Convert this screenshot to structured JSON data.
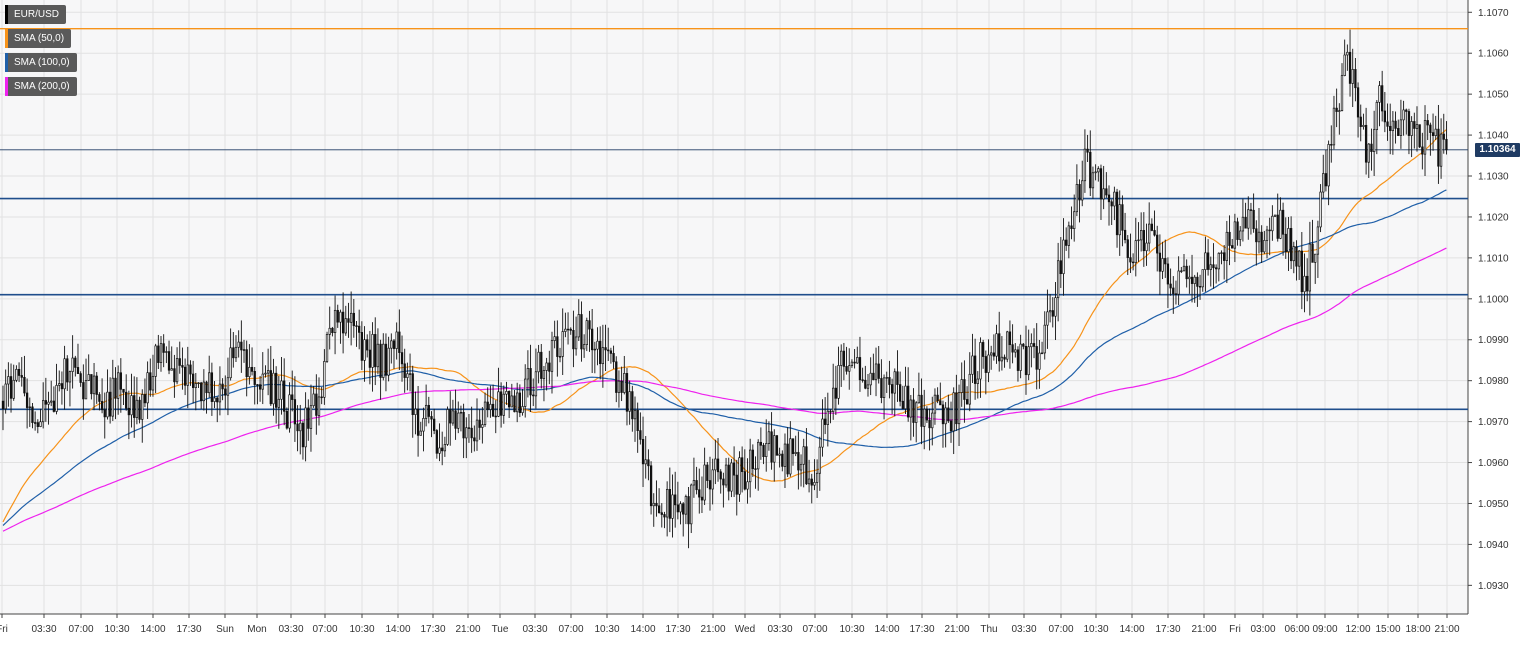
{
  "chart_data": {
    "type": "candlestick",
    "symbol": "EUR/USD",
    "indicators": [
      {
        "name": "SMA (50,0)",
        "color": "#f7931a",
        "period": 50
      },
      {
        "name": "SMA (100,0)",
        "color": "#1f5fa8",
        "period": 100
      },
      {
        "name": "SMA (200,0)",
        "color": "#ee22ee",
        "period": 200
      }
    ],
    "ylim": [
      1.0923,
      1.1073
    ],
    "y_ticks": [
      "1.0930",
      "1.0940",
      "1.0950",
      "1.0960",
      "1.0970",
      "1.0980",
      "1.0990",
      "1.1000",
      "1.1010",
      "1.1020",
      "1.1030",
      "1.1040",
      "1.1050",
      "1.1060",
      "1.1070"
    ],
    "x_ticks": [
      "Fri",
      "03:30",
      "07:00",
      "10:30",
      "14:00",
      "17:30",
      "Sun",
      "Mon",
      "03:30",
      "07:00",
      "10:30",
      "14:00",
      "17:30",
      "21:00",
      "Tue",
      "03:30",
      "07:00",
      "10:30",
      "14:00",
      "17:30",
      "21:00",
      "Wed",
      "03:30",
      "07:00",
      "10:30",
      "14:00",
      "17:30",
      "21:00",
      "Thu",
      "03:30",
      "07:00",
      "10:30",
      "14:00",
      "17:30",
      "21:00",
      "Fri",
      "03:00",
      "06:00",
      "09:00",
      "12:00",
      "15:00",
      "18:00",
      "21:00"
    ],
    "horizontal_levels": [
      {
        "value": 1.1066,
        "color": "#f7931a"
      },
      {
        "value": 1.10245,
        "color": "#1f4e8c"
      },
      {
        "value": 1.1001,
        "color": "#1f4e8c"
      },
      {
        "value": 1.0973,
        "color": "#1f4e8c"
      }
    ],
    "last_price": {
      "value": 1.10364,
      "label": "1.10364",
      "color": "#1f3b63"
    },
    "path_keypoints": [
      [
        0,
        1.0975
      ],
      [
        5,
        1.0982
      ],
      [
        12,
        1.097
      ],
      [
        18,
        1.0975
      ],
      [
        25,
        1.0983
      ],
      [
        30,
        1.098
      ],
      [
        38,
        1.0973
      ],
      [
        42,
        1.0978
      ],
      [
        50,
        1.0973
      ],
      [
        58,
        1.0985
      ],
      [
        66,
        1.0982
      ],
      [
        72,
        1.0976
      ],
      [
        80,
        1.0978
      ],
      [
        88,
        1.0987
      ],
      [
        96,
        1.0981
      ],
      [
        104,
        1.0975
      ],
      [
        112,
        1.0968
      ],
      [
        118,
        1.0978
      ],
      [
        124,
        1.0995
      ],
      [
        132,
        1.0991
      ],
      [
        140,
        1.0985
      ],
      [
        148,
        1.0988
      ],
      [
        154,
        1.0972
      ],
      [
        162,
        1.0966
      ],
      [
        170,
        1.0972
      ],
      [
        176,
        1.0968
      ],
      [
        182,
        1.0972
      ],
      [
        186,
        1.0974
      ],
      [
        190,
        1.0973
      ],
      [
        196,
        1.098
      ],
      [
        204,
        1.0985
      ],
      [
        212,
        1.099
      ],
      [
        218,
        1.0994
      ],
      [
        224,
        1.0987
      ],
      [
        230,
        1.0981
      ],
      [
        236,
        1.097
      ],
      [
        242,
        1.0954
      ],
      [
        248,
        1.095
      ],
      [
        254,
        1.0946
      ],
      [
        260,
        1.0955
      ],
      [
        266,
        1.0958
      ],
      [
        272,
        1.0956
      ],
      [
        280,
        1.096
      ],
      [
        288,
        1.0964
      ],
      [
        296,
        1.0961
      ],
      [
        302,
        1.0958
      ],
      [
        308,
        1.097
      ],
      [
        314,
        1.0988
      ],
      [
        320,
        1.0982
      ],
      [
        326,
        1.098
      ],
      [
        332,
        1.0978
      ],
      [
        338,
        1.0976
      ],
      [
        344,
        1.0972
      ],
      [
        350,
        1.0972
      ],
      [
        354,
        1.0971
      ],
      [
        358,
        1.0976
      ],
      [
        362,
        1.0982
      ],
      [
        368,
        1.0987
      ],
      [
        374,
        1.0989
      ],
      [
        380,
        1.0986
      ],
      [
        386,
        1.0985
      ],
      [
        392,
        1.0998
      ],
      [
        398,
        1.102
      ],
      [
        404,
        1.1032
      ],
      [
        410,
        1.1028
      ],
      [
        416,
        1.102
      ],
      [
        422,
        1.1012
      ],
      [
        428,
        1.1018
      ],
      [
        434,
        1.1008
      ],
      [
        438,
        1.1005
      ],
      [
        442,
        1.1007
      ],
      [
        446,
        1.1007
      ],
      [
        450,
        1.1006
      ],
      [
        454,
        1.1012
      ],
      [
        460,
        1.1016
      ],
      [
        466,
        1.1018
      ],
      [
        472,
        1.1015
      ],
      [
        478,
        1.1018
      ],
      [
        482,
        1.101
      ],
      [
        486,
        1.1004
      ],
      [
        490,
        1.1015
      ],
      [
        494,
        1.103
      ],
      [
        498,
        1.1048
      ],
      [
        502,
        1.1058
      ],
      [
        506,
        1.1045
      ],
      [
        510,
        1.1036
      ],
      [
        514,
        1.1048
      ],
      [
        518,
        1.1038
      ],
      [
        522,
        1.1046
      ],
      [
        526,
        1.1044
      ],
      [
        530,
        1.104
      ],
      [
        534,
        1.1038
      ],
      [
        538,
        1.1036
      ]
    ]
  }
}
